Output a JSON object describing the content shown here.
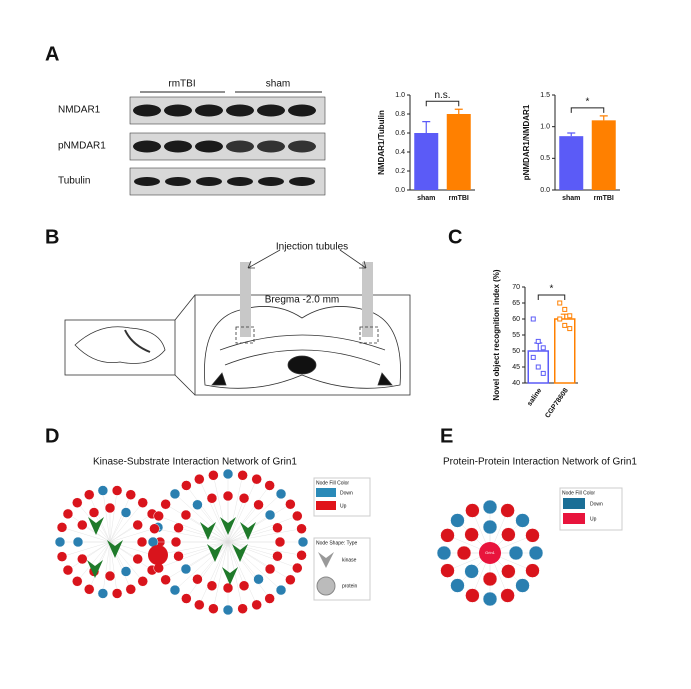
{
  "panel_labels": [
    "A",
    "B",
    "C",
    "D",
    "E"
  ],
  "blot": {
    "groups": [
      "rmTBI",
      "sham"
    ],
    "rows": [
      "NMDAR1",
      "pNMDAR1",
      "Tubulin"
    ]
  },
  "panel_b": {
    "callout": "Injection tubules",
    "section": "Bregma -2.0 mm"
  },
  "panel_d": {
    "title": "Kinase-Substrate Interaction Network of Grin1",
    "fill_legend_title": "Node Fill Color",
    "fill_legend": [
      "Down",
      "Up"
    ],
    "shape_legend_title": "Node Shape: Type",
    "shape_legend": [
      "kinase",
      "protein"
    ]
  },
  "panel_e": {
    "title": "Protein-Protein Interaction Network of Grin1",
    "fill_legend_title": "Node Fill Color",
    "fill_legend": [
      "Down",
      "Up"
    ],
    "hub": "Grin1"
  },
  "chart_data": [
    {
      "type": "bar",
      "ylabel": "NMDAR1/Tubulin",
      "categories": [
        "sham",
        "rmTBI"
      ],
      "values": [
        0.6,
        0.8
      ],
      "errors": [
        0.12,
        0.05
      ],
      "colors": [
        "#5b5bf7",
        "#ff8000"
      ],
      "bar_fill": "solid",
      "annotation": "n.s.",
      "ylim": [
        0,
        1.0
      ],
      "yticks": [
        {
          "value": 0,
          "label": "0.0"
        },
        0.2,
        0.4,
        0.6,
        0.8,
        {
          "value": 1,
          "label": "1.0"
        }
      ]
    },
    {
      "type": "bar",
      "ylabel": "pNMDAR1/NMDAR1",
      "categories": [
        "sham",
        "rmTBI"
      ],
      "values": [
        0.85,
        1.1
      ],
      "errors": [
        0.05,
        0.07
      ],
      "colors": [
        "#5b5bf7",
        "#ff8000"
      ],
      "bar_fill": "solid",
      "annotation": "*",
      "ylim": [
        0,
        1.5
      ],
      "yticks": [
        {
          "value": 0,
          "label": "0.0"
        },
        0.5,
        {
          "value": 1,
          "label": "1.0"
        },
        1.5
      ]
    },
    {
      "type": "bar",
      "ylabel": "Novel object recognition index (%)",
      "categories": [
        "saline",
        "CGP78608"
      ],
      "values": [
        50,
        60
      ],
      "errors": [
        2.5,
        1.5
      ],
      "colors": [
        "#5b5bf7",
        "#ff8000"
      ],
      "bar_fill": "open",
      "annotation": "*",
      "points": [
        [
          60,
          53,
          51,
          48,
          45,
          43
        ],
        [
          65,
          63,
          61,
          60,
          58,
          57
        ]
      ],
      "ylim": [
        40,
        70
      ],
      "yticks": [
        40,
        45,
        50,
        55,
        60,
        65,
        70
      ]
    }
  ]
}
